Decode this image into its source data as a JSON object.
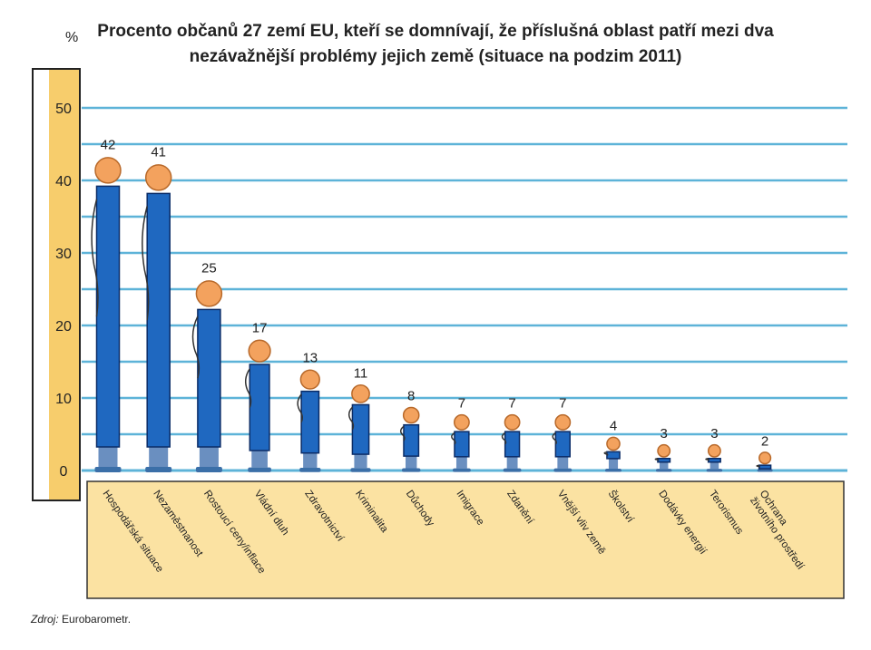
{
  "chart_data": {
    "type": "bar",
    "title": "Procento občanů 27 zemí EU, kteří se domnívají, že příslušná oblast patří mezi dva nezávažnější problémy jejich země (situace na podzim 2011)",
    "title_line1": "Procento občanů 27 zemí EU, kteří se domnívají, že příslušná oblast patří mezi dva",
    "title_line2": "nezávažnější problémy jejich země (situace na podzim 2011)",
    "ylabel": "%",
    "xlabel": "",
    "ylim": [
      0,
      50
    ],
    "yticks": [
      0,
      10,
      20,
      30,
      40,
      50
    ],
    "categories": [
      "Hospodářská situace",
      "Nezaměstnanost",
      "Rostoucí ceny/inflace",
      "Vládní dluh",
      "Zdravotnictví",
      "Kriminalita",
      "Důchody",
      "Imigrace",
      "Zdanění",
      "Vnější vliv země",
      "Školství",
      "Dodávky energií",
      "Terorismus",
      "Ochrana životního prostředí"
    ],
    "values": [
      42,
      41,
      25,
      17,
      13,
      11,
      8,
      7,
      7,
      7,
      4,
      3,
      3,
      2
    ],
    "grid": true,
    "legend": "none"
  },
  "source": {
    "prefix": "Zdroj:",
    "text": "Eurobarometr."
  },
  "colors": {
    "bar": "#1f68c0",
    "bar_outline": "#0b2c66",
    "head": "#f3a25e",
    "gridline": "#5db3d8",
    "label_box": "#fbe2a2",
    "axis_band": "#f7cd6c"
  }
}
